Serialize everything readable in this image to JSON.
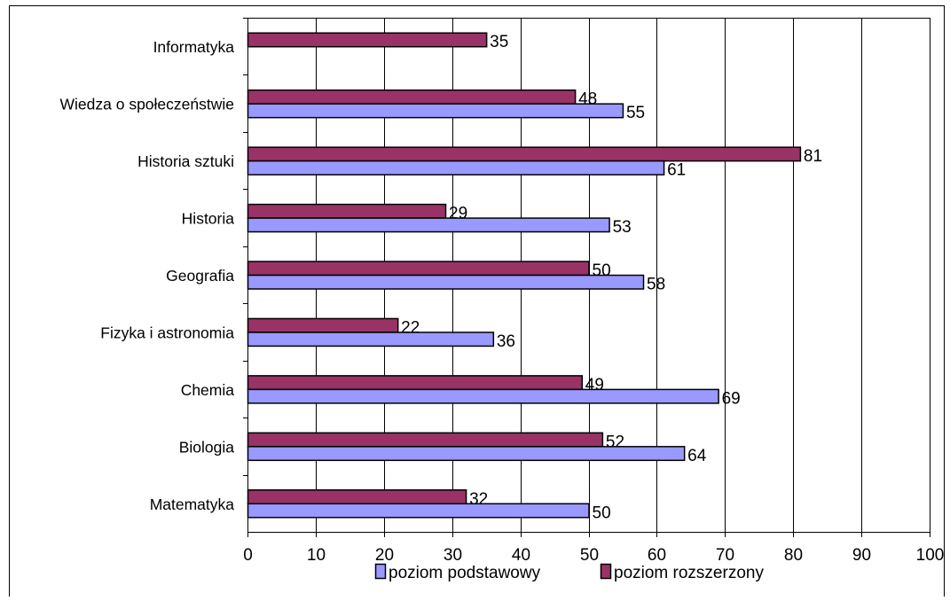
{
  "chart_data": {
    "type": "bar",
    "orientation": "horizontal",
    "categories": [
      "Informatyka",
      "Wiedza o społeczeństwie",
      "Historia sztuki",
      "Historia",
      "Geografia",
      "Fizyka i astronomia",
      "Chemia",
      "Biologia",
      "Matematyka"
    ],
    "series": [
      {
        "name": "poziom podstawowy",
        "color": "#9999FF",
        "values": [
          null,
          55,
          61,
          53,
          58,
          36,
          69,
          64,
          50
        ]
      },
      {
        "name": "poziom rozszerzony",
        "color": "#993366",
        "values": [
          35,
          48,
          81,
          29,
          50,
          22,
          49,
          52,
          32
        ]
      }
    ],
    "xlim": [
      0,
      100
    ],
    "x_ticks": [
      0,
      10,
      20,
      30,
      40,
      50,
      60,
      70,
      80,
      90,
      100
    ],
    "title": "",
    "xlabel": "",
    "ylabel": "",
    "grid": "vertical",
    "legend_position": "bottom"
  }
}
